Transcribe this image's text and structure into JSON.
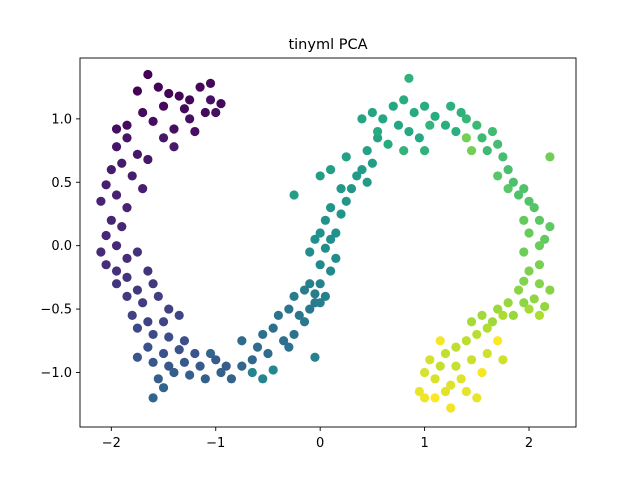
{
  "chart_data": {
    "type": "scatter",
    "title": "tinyml PCA",
    "xlabel": "",
    "ylabel": "",
    "xlim": [
      -2.3,
      2.45
    ],
    "ylim": [
      -1.43,
      1.48
    ],
    "xticks": [
      -2,
      -1,
      0,
      1,
      2
    ],
    "xtick_labels": [
      "−2",
      "−1",
      "0",
      "1",
      "2"
    ],
    "yticks": [
      -1.0,
      -0.5,
      0.0,
      0.5,
      1.0
    ],
    "ytick_labels": [
      "−1.0",
      "−0.5",
      "0.0",
      "0.5",
      "1.0"
    ],
    "grid": false,
    "legend": "none",
    "colormap": "viridis",
    "colors": {
      "start": "#440154",
      "mid": "#21918c",
      "end": "#fde725"
    },
    "marker_shape": "circle",
    "shape": "two-interleaving-crescents",
    "description": "",
    "series": [
      {
        "points": [
          [
            -1.65,
            1.35
          ],
          [
            -1.75,
            1.22
          ],
          [
            -1.55,
            1.25
          ],
          [
            -1.45,
            1.2
          ],
          [
            -1.35,
            1.18
          ],
          [
            -1.25,
            1.15
          ],
          [
            -1.15,
            1.25
          ],
          [
            -1.05,
            1.28
          ],
          [
            -0.95,
            1.12
          ],
          [
            -1.1,
            1.05
          ],
          [
            -1.3,
            1.08
          ],
          [
            -1.5,
            1.1
          ],
          [
            -1.7,
            1.05
          ],
          [
            -1.85,
            0.95
          ],
          [
            -1.95,
            0.92
          ],
          [
            -1.6,
            0.98
          ],
          [
            -1.4,
            0.92
          ],
          [
            -1.2,
            0.9
          ],
          [
            -1.0,
            1.05
          ],
          [
            -1.25,
            1.0
          ],
          [
            -1.05,
            1.15
          ]
        ],
        "color_start": 0.0,
        "color_end": 0.06
      },
      {
        "points": [
          [
            -1.85,
            0.85
          ],
          [
            -1.95,
            0.78
          ],
          [
            -1.75,
            0.72
          ],
          [
            -1.65,
            0.68
          ],
          [
            -1.5,
            0.85
          ],
          [
            -1.4,
            0.78
          ],
          [
            -1.9,
            0.65
          ],
          [
            -2.0,
            0.6
          ],
          [
            -1.8,
            0.55
          ],
          [
            -1.7,
            0.45
          ],
          [
            -2.05,
            0.48
          ],
          [
            -1.95,
            0.4
          ],
          [
            -2.1,
            0.35
          ],
          [
            -1.85,
            0.3
          ],
          [
            -2.0,
            0.2
          ],
          [
            -1.9,
            0.15
          ],
          [
            -2.05,
            0.08
          ],
          [
            -1.95,
            0.0
          ],
          [
            -2.1,
            -0.05
          ],
          [
            -1.85,
            -0.1
          ],
          [
            -2.05,
            -0.15
          ],
          [
            -1.95,
            -0.2
          ],
          [
            -1.75,
            -0.05
          ],
          [
            -1.65,
            -0.2
          ],
          [
            -1.85,
            -0.25
          ],
          [
            -1.95,
            -0.3
          ],
          [
            -1.75,
            -0.35
          ],
          [
            -1.6,
            -0.3
          ],
          [
            -1.85,
            -0.4
          ],
          [
            -1.7,
            -0.45
          ],
          [
            -1.55,
            -0.4
          ],
          [
            -1.45,
            -0.5
          ],
          [
            -1.8,
            -0.55
          ],
          [
            -1.65,
            -0.6
          ],
          [
            -1.5,
            -0.6
          ],
          [
            -1.35,
            -0.55
          ]
        ],
        "color_start": 0.07,
        "color_end": 0.22
      },
      {
        "points": [
          [
            -1.75,
            -0.65
          ],
          [
            -1.6,
            -0.7
          ],
          [
            -1.45,
            -0.72
          ],
          [
            -1.3,
            -0.75
          ],
          [
            -1.65,
            -0.8
          ],
          [
            -1.5,
            -0.85
          ],
          [
            -1.35,
            -0.82
          ],
          [
            -1.2,
            -0.85
          ],
          [
            -1.75,
            -0.88
          ],
          [
            -1.6,
            -0.92
          ],
          [
            -1.45,
            -0.95
          ],
          [
            -1.3,
            -0.92
          ],
          [
            -1.15,
            -0.95
          ],
          [
            -1.0,
            -0.9
          ],
          [
            -0.9,
            -0.95
          ],
          [
            -1.55,
            -1.05
          ],
          [
            -1.4,
            -1.0
          ],
          [
            -1.25,
            -1.02
          ],
          [
            -1.1,
            -1.05
          ],
          [
            -0.95,
            -1.0
          ],
          [
            -0.85,
            -1.05
          ],
          [
            -1.6,
            -1.2
          ],
          [
            -1.5,
            -1.12
          ],
          [
            -1.05,
            -0.85
          ],
          [
            -0.75,
            -0.95
          ],
          [
            -0.65,
            -0.9
          ]
        ],
        "color_start": 0.23,
        "color_end": 0.34
      },
      {
        "points": [
          [
            -0.75,
            -0.75
          ],
          [
            -0.6,
            -0.8
          ],
          [
            -0.5,
            -0.85
          ],
          [
            -0.55,
            -0.7
          ],
          [
            -0.45,
            -0.65
          ],
          [
            -0.35,
            -0.75
          ],
          [
            -0.3,
            -0.8
          ],
          [
            -0.25,
            -0.7
          ],
          [
            -0.4,
            -0.55
          ],
          [
            -0.3,
            -0.5
          ],
          [
            -0.2,
            -0.55
          ],
          [
            -0.15,
            -0.6
          ],
          [
            -0.1,
            -0.5
          ],
          [
            -0.05,
            -0.45
          ],
          [
            -0.25,
            -0.4
          ],
          [
            -0.15,
            -0.35
          ],
          [
            -0.05,
            -0.38
          ],
          [
            0.0,
            -0.45
          ],
          [
            0.05,
            -0.4
          ],
          [
            -0.1,
            -0.3
          ],
          [
            0.0,
            -0.3
          ],
          [
            -0.05,
            -0.88
          ],
          [
            -0.55,
            -1.05
          ],
          [
            -0.65,
            -1.0
          ],
          [
            -0.45,
            -0.98
          ]
        ],
        "color_start": 0.35,
        "color_end": 0.46
      },
      {
        "points": [
          [
            0.1,
            -0.2
          ],
          [
            0.0,
            -0.15
          ],
          [
            0.15,
            -0.1
          ],
          [
            -0.1,
            -0.05
          ],
          [
            0.05,
            -0.02
          ],
          [
            0.1,
            0.05
          ],
          [
            -0.05,
            0.05
          ],
          [
            0.0,
            0.1
          ],
          [
            0.15,
            0.1
          ],
          [
            0.05,
            0.2
          ],
          [
            0.1,
            0.3
          ],
          [
            0.2,
            0.25
          ],
          [
            0.25,
            0.35
          ],
          [
            0.3,
            0.45
          ],
          [
            0.2,
            0.45
          ],
          [
            0.35,
            0.55
          ],
          [
            0.45,
            0.5
          ],
          [
            0.4,
            0.6
          ],
          [
            0.5,
            0.65
          ],
          [
            0.0,
            0.55
          ],
          [
            0.1,
            0.6
          ],
          [
            -0.25,
            0.4
          ],
          [
            0.25,
            0.7
          ],
          [
            0.45,
            0.75
          ],
          [
            0.55,
            0.85
          ]
        ],
        "color_start": 0.47,
        "color_end": 0.58
      },
      {
        "points": [
          [
            0.4,
            1.0
          ],
          [
            0.5,
            1.05
          ],
          [
            0.6,
            1.0
          ],
          [
            0.7,
            1.1
          ],
          [
            0.75,
            0.95
          ],
          [
            0.85,
            0.9
          ],
          [
            0.95,
            0.85
          ],
          [
            0.55,
            0.9
          ],
          [
            0.65,
            0.8
          ],
          [
            0.8,
            1.15
          ],
          [
            0.9,
            1.05
          ],
          [
            1.0,
            1.1
          ],
          [
            1.1,
            1.02
          ],
          [
            1.2,
            0.95
          ],
          [
            1.3,
            0.9
          ],
          [
            1.25,
            1.1
          ],
          [
            1.35,
            1.05
          ],
          [
            0.85,
            1.32
          ],
          [
            1.0,
            0.75
          ],
          [
            0.8,
            0.75
          ],
          [
            1.05,
            0.95
          ]
        ],
        "color_start": 0.59,
        "color_end": 0.66
      },
      {
        "points": [
          [
            1.4,
            1.0
          ],
          [
            1.5,
            0.95
          ],
          [
            1.55,
            0.85
          ],
          [
            1.6,
            0.75
          ],
          [
            1.65,
            0.9
          ],
          [
            1.7,
            0.8
          ],
          [
            1.75,
            0.7
          ],
          [
            1.8,
            0.6
          ],
          [
            1.85,
            0.5
          ],
          [
            1.9,
            0.4
          ],
          [
            1.95,
            0.45
          ],
          [
            2.0,
            0.35
          ],
          [
            2.05,
            0.3
          ],
          [
            1.7,
            0.55
          ],
          [
            1.8,
            0.45
          ],
          [
            2.1,
            0.2
          ],
          [
            2.2,
            0.15
          ],
          [
            2.15,
            0.05
          ],
          [
            1.95,
            0.2
          ],
          [
            2.0,
            0.1
          ],
          [
            2.1,
            0.0
          ],
          [
            1.95,
            -0.05
          ],
          [
            2.2,
            0.7
          ],
          [
            1.45,
            0.75
          ],
          [
            1.4,
            0.85
          ]
        ],
        "color_start": 0.67,
        "color_end": 0.79
      },
      {
        "points": [
          [
            2.1,
            -0.15
          ],
          [
            2.0,
            -0.2
          ],
          [
            1.95,
            -0.28
          ],
          [
            2.1,
            -0.3
          ],
          [
            2.2,
            -0.35
          ],
          [
            1.9,
            -0.35
          ],
          [
            1.95,
            -0.45
          ],
          [
            2.05,
            -0.42
          ],
          [
            2.15,
            -0.48
          ],
          [
            1.8,
            -0.45
          ],
          [
            1.85,
            -0.55
          ],
          [
            1.7,
            -0.5
          ],
          [
            1.65,
            -0.6
          ],
          [
            1.55,
            -0.55
          ],
          [
            1.45,
            -0.6
          ],
          [
            2.0,
            -0.5
          ],
          [
            2.1,
            -0.55
          ],
          [
            1.75,
            -0.55
          ],
          [
            1.6,
            -0.65
          ]
        ],
        "color_start": 0.8,
        "color_end": 0.89
      },
      {
        "points": [
          [
            1.5,
            -0.7
          ],
          [
            1.4,
            -0.75
          ],
          [
            1.3,
            -0.8
          ],
          [
            1.2,
            -0.85
          ],
          [
            1.15,
            -0.95
          ],
          [
            1.3,
            -0.95
          ],
          [
            1.45,
            -0.9
          ],
          [
            1.6,
            -0.85
          ],
          [
            1.75,
            -0.9
          ],
          [
            1.05,
            -0.9
          ],
          [
            1.0,
            -1.0
          ],
          [
            1.1,
            -1.05
          ],
          [
            1.25,
            -1.1
          ],
          [
            1.35,
            -1.05
          ],
          [
            1.2,
            -1.15
          ],
          [
            1.4,
            -1.15
          ],
          [
            1.5,
            -1.2
          ],
          [
            0.95,
            -1.15
          ],
          [
            1.0,
            -1.2
          ],
          [
            1.25,
            -1.28
          ],
          [
            1.15,
            -0.75
          ],
          [
            1.55,
            -1.0
          ],
          [
            1.7,
            -0.75
          ],
          [
            1.1,
            -1.2
          ]
        ],
        "color_start": 0.9,
        "color_end": 1.0
      }
    ]
  }
}
